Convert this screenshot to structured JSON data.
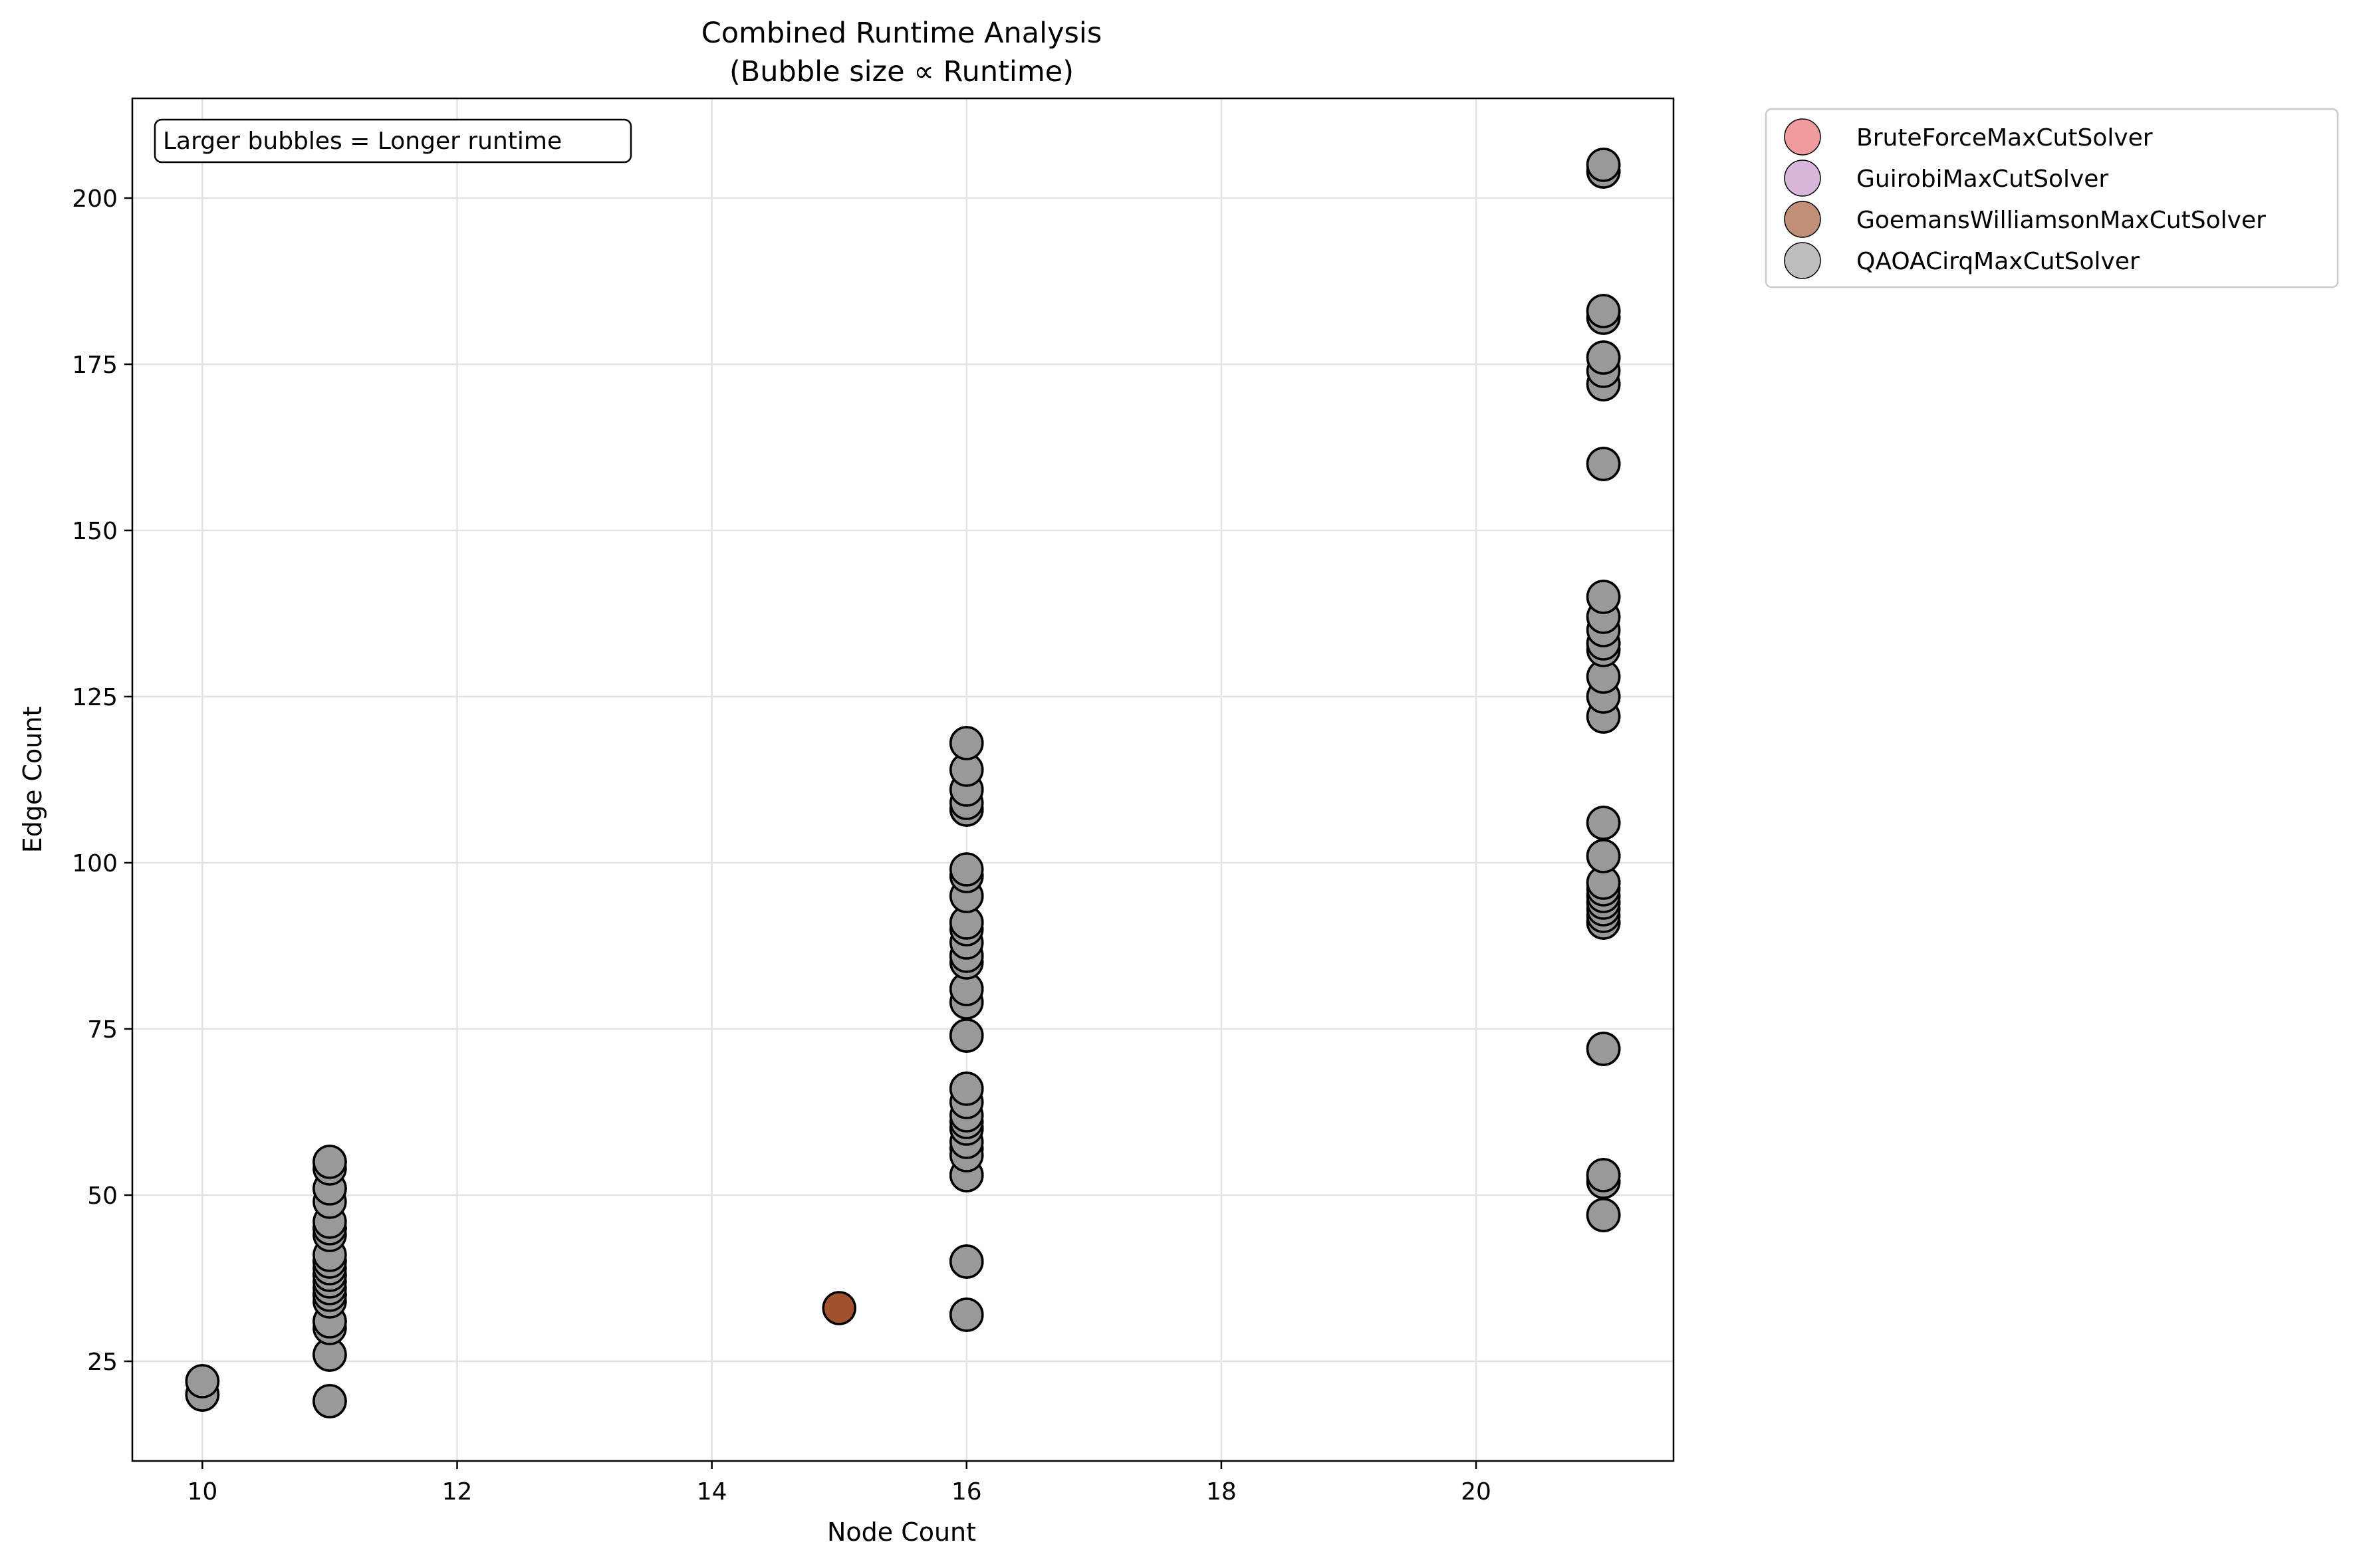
{
  "chart_data": {
    "type": "scatter",
    "title": "Combined Runtime Analysis",
    "subtitle": "(Bubble size ∝ Runtime)",
    "xlabel": "Node Count",
    "ylabel": "Edge Count",
    "xlim": [
      9.45,
      21.55
    ],
    "ylim": [
      10,
      215
    ],
    "xticks": [
      10,
      12,
      14,
      16,
      18,
      20
    ],
    "yticks": [
      25,
      50,
      75,
      100,
      125,
      150,
      175,
      200
    ],
    "grid": true,
    "legend_position": "outside-top-right",
    "annotation": "Larger bubbles = Longer runtime",
    "series": [
      {
        "name": "BruteForceMaxCutSolver",
        "color": "#e8676b",
        "points": [
          [
            10,
            20
          ],
          [
            10,
            22
          ],
          [
            11,
            19
          ],
          [
            11,
            26
          ],
          [
            11,
            31
          ],
          [
            11,
            35
          ],
          [
            11,
            38
          ],
          [
            11,
            40
          ],
          [
            11,
            45
          ],
          [
            11,
            51
          ],
          [
            11,
            55
          ],
          [
            16,
            32
          ],
          [
            16,
            40
          ],
          [
            16,
            53
          ],
          [
            16,
            57
          ],
          [
            16,
            60
          ],
          [
            16,
            66
          ],
          [
            16,
            74
          ],
          [
            16,
            79
          ],
          [
            16,
            81
          ],
          [
            16,
            86
          ],
          [
            16,
            91
          ],
          [
            16,
            95
          ],
          [
            16,
            98
          ],
          [
            16,
            108
          ],
          [
            16,
            111
          ],
          [
            16,
            114
          ],
          [
            16,
            118
          ],
          [
            21,
            47
          ],
          [
            21,
            52
          ],
          [
            21,
            53
          ],
          [
            21,
            72
          ],
          [
            21,
            91
          ],
          [
            21,
            94
          ],
          [
            21,
            97
          ],
          [
            21,
            101
          ],
          [
            21,
            106
          ],
          [
            21,
            122
          ],
          [
            21,
            125
          ],
          [
            21,
            128
          ],
          [
            21,
            133
          ],
          [
            21,
            137
          ],
          [
            21,
            140
          ],
          [
            21,
            160
          ],
          [
            21,
            172
          ],
          [
            21,
            176
          ],
          [
            21,
            182
          ],
          [
            21,
            183
          ],
          [
            21,
            204
          ],
          [
            21,
            205
          ]
        ]
      },
      {
        "name": "GuirobiMaxCutSolver",
        "color": "#c591c7",
        "points": [
          [
            10,
            20
          ],
          [
            10,
            22
          ],
          [
            11,
            19
          ],
          [
            11,
            26
          ],
          [
            11,
            31
          ],
          [
            11,
            35
          ],
          [
            11,
            40
          ],
          [
            11,
            45
          ],
          [
            11,
            51
          ],
          [
            11,
            55
          ],
          [
            16,
            32
          ],
          [
            16,
            40
          ],
          [
            16,
            53
          ],
          [
            16,
            60
          ],
          [
            16,
            66
          ],
          [
            16,
            74
          ],
          [
            16,
            81
          ],
          [
            16,
            86
          ],
          [
            16,
            91
          ],
          [
            16,
            98
          ],
          [
            16,
            108
          ],
          [
            16,
            118
          ],
          [
            21,
            47
          ],
          [
            21,
            53
          ],
          [
            21,
            72
          ],
          [
            21,
            91
          ],
          [
            21,
            95
          ],
          [
            21,
            101
          ],
          [
            21,
            106
          ],
          [
            21,
            125
          ],
          [
            21,
            133
          ],
          [
            21,
            140
          ],
          [
            21,
            160
          ],
          [
            21,
            172
          ],
          [
            21,
            176
          ],
          [
            21,
            183
          ],
          [
            21,
            204
          ]
        ]
      },
      {
        "name": "GoemansWilliamsonMaxCutSolver",
        "color": "#a0522d",
        "points": [
          [
            10,
            20
          ],
          [
            15,
            33
          ],
          [
            11,
            38
          ],
          [
            16,
            86
          ],
          [
            21,
            97
          ]
        ]
      },
      {
        "name": "QAOACirqMaxCutSolver",
        "color": "#999999",
        "points": [
          [
            10,
            20
          ],
          [
            10,
            22
          ],
          [
            11,
            19
          ],
          [
            11,
            26
          ],
          [
            11,
            30
          ],
          [
            11,
            31
          ],
          [
            11,
            34
          ],
          [
            11,
            35
          ],
          [
            11,
            36
          ],
          [
            11,
            37
          ],
          [
            11,
            38
          ],
          [
            11,
            39
          ],
          [
            11,
            40
          ],
          [
            11,
            41
          ],
          [
            11,
            44
          ],
          [
            11,
            45
          ],
          [
            11,
            46
          ],
          [
            11,
            49
          ],
          [
            11,
            51
          ],
          [
            11,
            54
          ],
          [
            11,
            55
          ],
          [
            16,
            32
          ],
          [
            16,
            40
          ],
          [
            16,
            53
          ],
          [
            16,
            56
          ],
          [
            16,
            58
          ],
          [
            16,
            60
          ],
          [
            16,
            61
          ],
          [
            16,
            62
          ],
          [
            16,
            64
          ],
          [
            16,
            66
          ],
          [
            16,
            74
          ],
          [
            16,
            79
          ],
          [
            16,
            81
          ],
          [
            16,
            85
          ],
          [
            16,
            86
          ],
          [
            16,
            88
          ],
          [
            16,
            90
          ],
          [
            16,
            91
          ],
          [
            16,
            95
          ],
          [
            16,
            98
          ],
          [
            16,
            99
          ],
          [
            16,
            108
          ],
          [
            16,
            109
          ],
          [
            16,
            111
          ],
          [
            16,
            114
          ],
          [
            16,
            118
          ],
          [
            21,
            47
          ],
          [
            21,
            52
          ],
          [
            21,
            53
          ],
          [
            21,
            72
          ],
          [
            21,
            91
          ],
          [
            21,
            92
          ],
          [
            21,
            93
          ],
          [
            21,
            94
          ],
          [
            21,
            95
          ],
          [
            21,
            96
          ],
          [
            21,
            97
          ],
          [
            21,
            101
          ],
          [
            21,
            106
          ],
          [
            21,
            122
          ],
          [
            21,
            125
          ],
          [
            21,
            128
          ],
          [
            21,
            132
          ],
          [
            21,
            133
          ],
          [
            21,
            135
          ],
          [
            21,
            137
          ],
          [
            21,
            140
          ],
          [
            21,
            160
          ],
          [
            21,
            172
          ],
          [
            21,
            174
          ],
          [
            21,
            176
          ],
          [
            21,
            182
          ],
          [
            21,
            183
          ],
          [
            21,
            204
          ],
          [
            21,
            205
          ]
        ]
      }
    ]
  }
}
